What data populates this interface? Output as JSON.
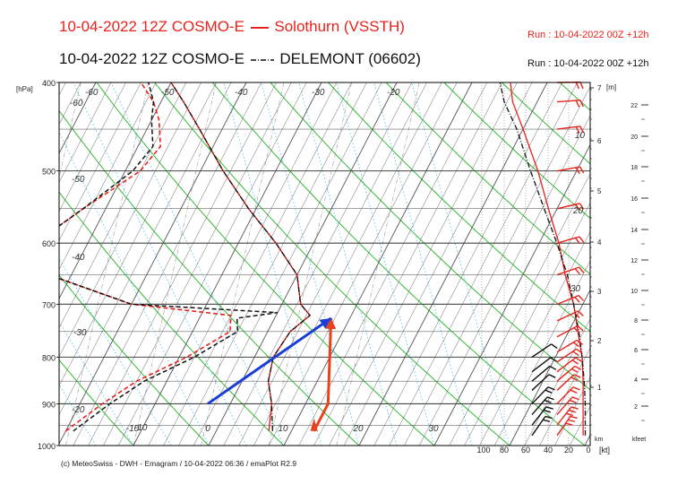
{
  "header": {
    "line1": {
      "run": "10-04-2022 12Z COSMO-E",
      "station": "Solothurn (VSSTH)",
      "run_info": "Run : 10-04-2022 00Z +12h",
      "color": "#e8221c"
    },
    "line2": {
      "run": "10-04-2022 12Z COSMO-E",
      "station": "DELEMONT (06602)",
      "run_info": "Run : 10-04-2022 00Z +12h",
      "color": "#111111"
    }
  },
  "footer": "(c) MeteoSwiss - DWH - Emagram / 10-04-2022  06:36 / emaPlot R2.9",
  "chart_data": {
    "type": "line",
    "diagram": "Emagram",
    "y_axis": {
      "unit": "[hPa]",
      "scale": "log",
      "ylim": [
        1000,
        400
      ],
      "ticks": [
        400,
        500,
        600,
        700,
        800,
        900,
        1000
      ]
    },
    "x_axis": {
      "ticks": [
        -10,
        0,
        10,
        20,
        30
      ]
    },
    "isotherm_labels": [
      -60,
      -50,
      -40,
      -30,
      -20,
      -60,
      -50,
      -40,
      -30,
      -20,
      -10
    ],
    "height_km_axis": {
      "unit": "[m]",
      "footer_label": "km",
      "ticks": [
        1,
        2,
        3,
        4,
        5,
        6,
        7
      ]
    },
    "height_kfeet_axis": {
      "footer_label": "kfeet",
      "ticks": [
        2,
        4,
        6,
        8,
        10,
        12,
        14,
        16,
        18,
        20,
        22
      ]
    },
    "mixing_ratio_labels": [
      10,
      20,
      30
    ],
    "wind_axis": {
      "unit": "[kt]",
      "ticks": [
        100,
        80,
        60,
        40,
        20,
        0
      ]
    },
    "colors": {
      "solothurn": "#e8221c",
      "delemont": "#111111",
      "isobar": "#444444",
      "isotherm": "#555555",
      "dry_adiabat": "#33bb33",
      "moist_adiabat": "#66ccee",
      "parcel_arrow_1": "#e8421c",
      "parcel_arrow_2": "#1b3fd6"
    },
    "series": [
      {
        "name": "Solothurn (VSSTH)",
        "line": "solid",
        "temperature": [
          [
            964,
            7
          ],
          [
            900,
            5.5
          ],
          [
            850,
            3.5
          ],
          [
            800,
            2.5
          ],
          [
            750,
            3
          ],
          [
            720,
            4.5
          ],
          [
            700,
            2.5
          ],
          [
            650,
            0
          ],
          [
            600,
            -5
          ],
          [
            550,
            -11
          ],
          [
            500,
            -17
          ],
          [
            450,
            -23
          ],
          [
            420,
            -27
          ],
          [
            400,
            -30
          ]
        ],
        "dewpoint": [
          [
            964,
            -20
          ],
          [
            900,
            -17
          ],
          [
            850,
            -14
          ],
          [
            800,
            -9
          ],
          [
            750,
            -5
          ],
          [
            720,
            -6
          ],
          [
            700,
            -20
          ],
          [
            650,
            -33
          ],
          [
            600,
            -37
          ],
          [
            550,
            -33
          ],
          [
            500,
            -28
          ],
          [
            470,
            -27
          ],
          [
            440,
            -29
          ],
          [
            420,
            -31
          ],
          [
            400,
            -34
          ]
        ]
      },
      {
        "name": "DELEMONT (06602)",
        "line": "dash-dot",
        "temperature": [
          [
            964,
            7.5
          ],
          [
            900,
            5.5
          ],
          [
            850,
            3.5
          ],
          [
            800,
            2.5
          ],
          [
            750,
            3
          ],
          [
            720,
            4.5
          ],
          [
            700,
            2.5
          ],
          [
            650,
            0
          ],
          [
            600,
            -5
          ],
          [
            550,
            -11
          ],
          [
            500,
            -17
          ],
          [
            450,
            -23
          ],
          [
            420,
            -27
          ],
          [
            400,
            -30
          ]
        ],
        "dewpoint": [
          [
            964,
            -19
          ],
          [
            900,
            -16
          ],
          [
            850,
            -13
          ],
          [
            800,
            -8
          ],
          [
            750,
            -4
          ],
          [
            725,
            -5
          ],
          [
            715,
            0
          ],
          [
            700,
            -20
          ],
          [
            650,
            -33
          ],
          [
            600,
            -37
          ],
          [
            550,
            -33
          ],
          [
            500,
            -29
          ],
          [
            470,
            -28
          ],
          [
            440,
            -30
          ],
          [
            420,
            -31
          ],
          [
            400,
            -33
          ]
        ]
      }
    ],
    "arrows": [
      {
        "name": "parcel-ascent-surface",
        "from": [
          964,
          13
        ],
        "via": [
          [
            900,
            13
          ]
        ],
        "to": [
          725,
          7.5
        ]
      },
      {
        "name": "parcel-ascent-mixed",
        "from": [
          900,
          -3
        ],
        "to": [
          725,
          7.5
        ]
      }
    ],
    "winds": {
      "solothurn": [
        [
          975,
          28
        ],
        [
          950,
          26
        ],
        [
          925,
          24
        ],
        [
          900,
          22
        ],
        [
          870,
          18
        ],
        [
          850,
          17
        ],
        [
          830,
          16
        ],
        [
          810,
          16
        ],
        [
          790,
          17
        ],
        [
          760,
          18
        ],
        [
          730,
          20
        ],
        [
          700,
          22
        ],
        [
          650,
          24
        ],
        [
          600,
          24
        ],
        [
          550,
          22
        ],
        [
          500,
          20
        ],
        [
          450,
          20
        ],
        [
          420,
          20
        ],
        [
          400,
          18
        ]
      ],
      "delemont": [
        [
          975,
          22
        ],
        [
          950,
          20
        ],
        [
          925,
          18
        ],
        [
          900,
          16
        ],
        [
          870,
          14
        ],
        [
          850,
          13
        ],
        [
          830,
          12
        ],
        [
          800,
          12
        ]
      ]
    }
  }
}
